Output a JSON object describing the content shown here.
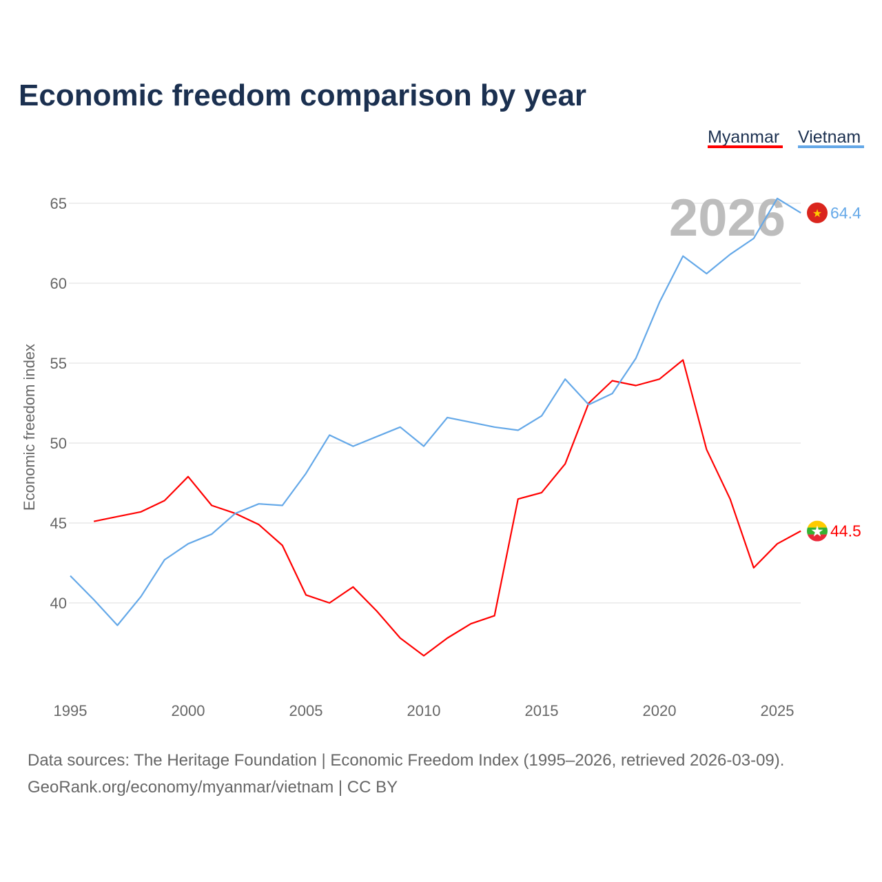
{
  "chart_data": {
    "type": "line",
    "title": "Economic freedom comparison by year",
    "xlabel": "",
    "ylabel": "Economic freedom index",
    "xlim": [
      1995,
      2026
    ],
    "ylim": [
      35,
      67
    ],
    "x_ticks": [
      1995,
      2000,
      2005,
      2010,
      2015,
      2020,
      2025
    ],
    "y_ticks": [
      40,
      45,
      50,
      55,
      60,
      65
    ],
    "grid": true,
    "legend_position": "top-right",
    "year_watermark": "2026",
    "series": [
      {
        "name": "Myanmar",
        "color": "#ff0000",
        "end_label": "44.5",
        "x": [
          1996,
          1997,
          1998,
          1999,
          2000,
          2001,
          2002,
          2003,
          2004,
          2005,
          2006,
          2007,
          2008,
          2009,
          2010,
          2011,
          2012,
          2013,
          2014,
          2015,
          2016,
          2017,
          2018,
          2019,
          2020,
          2021,
          2022,
          2023,
          2024,
          2025,
          2026
        ],
        "values": [
          45.1,
          45.4,
          45.7,
          46.4,
          47.9,
          46.1,
          45.6,
          44.9,
          43.6,
          40.5,
          40.0,
          41.0,
          39.5,
          37.8,
          36.7,
          37.8,
          38.7,
          39.2,
          46.5,
          46.9,
          48.7,
          52.5,
          53.9,
          53.6,
          54.0,
          55.2,
          49.6,
          46.5,
          42.2,
          43.7,
          44.5
        ]
      },
      {
        "name": "Vietnam",
        "color": "#64a8e8",
        "end_label": "64.4",
        "x": [
          1995,
          1996,
          1997,
          1998,
          1999,
          2000,
          2001,
          2002,
          2003,
          2004,
          2005,
          2006,
          2007,
          2008,
          2009,
          2010,
          2011,
          2012,
          2013,
          2014,
          2015,
          2016,
          2017,
          2018,
          2019,
          2020,
          2021,
          2022,
          2023,
          2024,
          2025,
          2026
        ],
        "values": [
          41.7,
          40.2,
          38.6,
          40.4,
          42.7,
          43.7,
          44.3,
          45.6,
          46.2,
          46.1,
          48.1,
          50.5,
          49.8,
          50.4,
          51.0,
          49.8,
          51.6,
          51.3,
          51.0,
          50.8,
          51.7,
          54.0,
          52.4,
          53.1,
          55.3,
          58.8,
          61.7,
          60.6,
          61.8,
          62.8,
          65.3,
          64.4
        ]
      }
    ],
    "source_line1": "Data sources: The Heritage Foundation | Economic Freedom Index (1995–2026, retrieved 2026-03-09).",
    "source_line2": "GeoRank.org/economy/myanmar/vietnam | CC BY"
  }
}
